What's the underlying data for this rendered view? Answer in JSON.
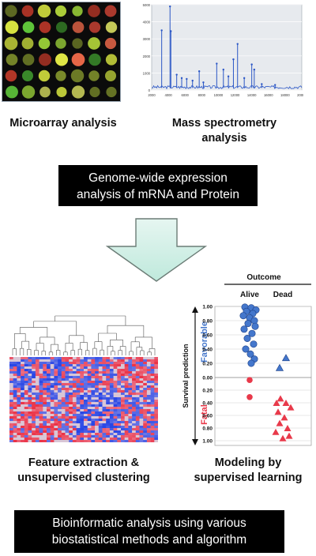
{
  "microarray": {
    "caption": "Microarray analysis",
    "spot_colors": [
      "#d9e640",
      "#5fc53a",
      "#c33a2a",
      "#e8ef48",
      "#b8db3c",
      "#7a8a2a",
      "#e24a3a",
      "#9fd63a",
      "#3a8a2a",
      "#f0f56a",
      "#cfe23e",
      "#ef6a4a"
    ]
  },
  "mass_spec": {
    "caption_line1": "Mass spectrometry",
    "caption_line2": "analysis",
    "y_ticks": [
      "5000",
      "4000",
      "3000",
      "2000",
      "1000",
      "0"
    ],
    "x_ticks": [
      "2000",
      "4000",
      "6000",
      "8000",
      "10000",
      "12000",
      "14000",
      "16000",
      "18000",
      "20000"
    ],
    "peaks": [
      {
        "x": 3200,
        "y": 3500
      },
      {
        "x": 4200,
        "y": 4900
      },
      {
        "x": 4300,
        "y": 3450
      },
      {
        "x": 5000,
        "y": 900
      },
      {
        "x": 5600,
        "y": 700
      },
      {
        "x": 6200,
        "y": 650
      },
      {
        "x": 6900,
        "y": 550
      },
      {
        "x": 7700,
        "y": 1100
      },
      {
        "x": 8200,
        "y": 450
      },
      {
        "x": 9800,
        "y": 1550
      },
      {
        "x": 10600,
        "y": 1200
      },
      {
        "x": 11200,
        "y": 800
      },
      {
        "x": 11800,
        "y": 1800
      },
      {
        "x": 12300,
        "y": 2700
      },
      {
        "x": 13100,
        "y": 700
      },
      {
        "x": 14000,
        "y": 1500
      },
      {
        "x": 14300,
        "y": 1200
      },
      {
        "x": 15200,
        "y": 350
      },
      {
        "x": 16800,
        "y": 300
      }
    ],
    "x_range": [
      2000,
      20000
    ],
    "y_range": [
      0,
      5000
    ]
  },
  "genome_box": {
    "line1": "Genome-wide expression",
    "line2": "analysis of mRNA and Protein"
  },
  "heatmap": {
    "caption_line1": "Feature extraction &",
    "caption_line2": "unsupervised clustering"
  },
  "chart_data": {
    "type": "scatter",
    "title": "Outcome",
    "groups": [
      "Alive",
      "Dead"
    ],
    "ylabel": "Survival prediction",
    "favorable_label": "Favorable",
    "fatal_label": "Fatal",
    "y_ticks_top": [
      "1.00",
      "0.80",
      "0.60",
      "0.40",
      "0.20",
      "0.00"
    ],
    "y_ticks_bottom": [
      "0.20",
      "0.40",
      "0.60",
      "0.80",
      "1.00"
    ],
    "colors": {
      "favorable": "#4477cc",
      "fatal": "#e8394a"
    },
    "favorable_alive": [
      0.99,
      0.98,
      0.95,
      0.93,
      0.9,
      0.87,
      0.84,
      0.8,
      0.76,
      0.72,
      0.68,
      0.62,
      0.55,
      0.47,
      0.4,
      0.33,
      0.26,
      0.2
    ],
    "favorable_dead": [
      0.28,
      0.14
    ],
    "fatal_alive": [
      0.04,
      0.31
    ],
    "fatal_dead": [
      0.33,
      0.4,
      0.4,
      0.47,
      0.54,
      0.63,
      0.72,
      0.8,
      0.86,
      0.92,
      0.96
    ]
  },
  "modeling": {
    "caption_line1": "Modeling by",
    "caption_line2": "supervised learning"
  },
  "bio_box": {
    "line1": "Bioinformatic analysis using various",
    "line2": "biostatistical methods and algorithm"
  }
}
